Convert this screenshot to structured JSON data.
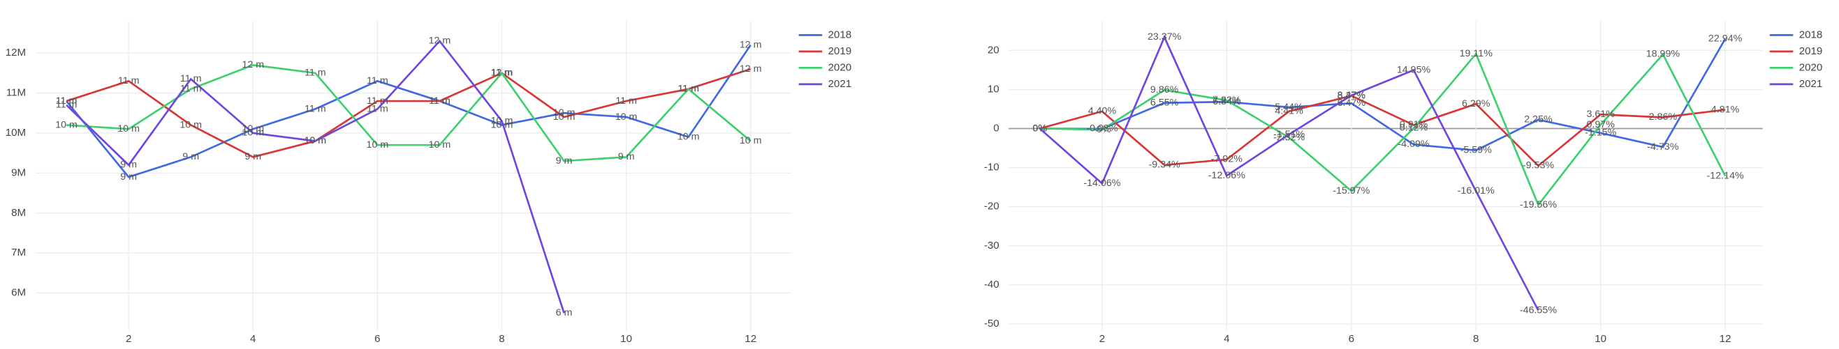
{
  "chart_data": [
    {
      "type": "line",
      "x": [
        1,
        2,
        3,
        4,
        5,
        6,
        7,
        8,
        9,
        10,
        11,
        12
      ],
      "xlim": [
        0.5,
        12.66
      ],
      "xticks": [
        2,
        4,
        6,
        8,
        10,
        12
      ],
      "ylim": [
        5.05,
        12.8
      ],
      "yticks": [
        {
          "value": 6,
          "label": "6M"
        },
        {
          "value": 7,
          "label": "7M"
        },
        {
          "value": 8,
          "label": "8M"
        },
        {
          "value": 9,
          "label": "9M"
        },
        {
          "value": 10,
          "label": "10M"
        },
        {
          "value": 11,
          "label": "11M"
        },
        {
          "value": 12,
          "label": "12M"
        }
      ],
      "grid": true,
      "legend": "right",
      "series": [
        {
          "name": "2018",
          "color": "#4169e1",
          "values": [
            10.8,
            8.9,
            9.4,
            10.1,
            10.6,
            11.3,
            10.8,
            10.2,
            10.5,
            10.4,
            9.9,
            12.2
          ],
          "value_labels": [
            "11 m",
            "9 m",
            "9 m",
            "10 m",
            "11 m",
            "11 m",
            "11 m",
            "10 m",
            "10 m",
            "10 m",
            "10 m",
            "12 m"
          ]
        },
        {
          "name": "2019",
          "color": "#d93636",
          "values": [
            10.8,
            11.3,
            10.2,
            9.4,
            9.8,
            10.8,
            10.8,
            11.5,
            10.4,
            10.8,
            11.1,
            11.6
          ],
          "value_labels": [
            "11 m",
            "11 m",
            "10 m",
            "9 m",
            "10 m",
            "11 m",
            "11 m",
            "12 m",
            "10 m",
            "11 m",
            "11 m",
            "12 m"
          ]
        },
        {
          "name": "2020",
          "color": "#3ecf6e",
          "values": [
            10.2,
            10.1,
            11.1,
            11.7,
            11.5,
            9.7,
            9.7,
            11.5,
            9.3,
            9.4,
            11.1,
            9.8
          ],
          "value_labels": [
            "10 m",
            "10 m",
            "11 m",
            "12 m",
            "11 m",
            "10 m",
            "10 m",
            "11 m",
            "9 m",
            "9 m",
            "11 m",
            "10 m"
          ]
        },
        {
          "name": "2021",
          "color": "#7046e0",
          "values": [
            10.7,
            9.2,
            11.35,
            10.0,
            9.8,
            10.6,
            12.3,
            10.3,
            5.5,
            null,
            null,
            null
          ],
          "value_labels": [
            "11 m",
            "9 m",
            "11 m",
            "10 m",
            "10 m",
            "11 m",
            "12 m",
            "10 m",
            "6 m",
            null,
            null,
            null
          ]
        }
      ]
    },
    {
      "type": "line",
      "x": [
        1,
        2,
        3,
        4,
        5,
        6,
        7,
        8,
        9,
        10,
        11,
        12
      ],
      "xlim": [
        0.5,
        12.6
      ],
      "xticks": [
        2,
        4,
        6,
        8,
        10,
        12
      ],
      "ylim": [
        -51.8,
        27.5
      ],
      "yticks": [
        -50,
        -40,
        -30,
        -20,
        -10,
        0,
        10,
        20
      ],
      "grid": true,
      "zeroline": true,
      "legend": "right",
      "series": [
        {
          "name": "2018",
          "color": "#4169e1",
          "values": [
            0,
            -0.08,
            6.55,
            6.84,
            5.44,
            6.47,
            -4.09,
            -5.59,
            2.25,
            -1.15,
            -4.73,
            22.94
          ],
          "value_labels": [
            "0%",
            "-0.08%",
            "6.55%",
            "6.84%",
            "5.44%",
            "6.47%",
            "-4.09%",
            "-5.59%",
            "2.25%",
            "-1.15%",
            "-4.73%",
            "22.94%"
          ]
        },
        {
          "name": "2019",
          "color": "#d93636",
          "values": [
            0,
            4.4,
            -9.34,
            -7.92,
            4.41,
            8.37,
            0.91,
            6.29,
            -9.53,
            3.61,
            2.86,
            4.81
          ],
          "value_labels": [
            "0%",
            "4.40%",
            "-9.34%",
            "-7.92%",
            "4.41%",
            "8.37%",
            "0.91%",
            "6.29%",
            "-9.53%",
            "3.61%",
            "2.86%",
            "4.81%"
          ]
        },
        {
          "name": "2020",
          "color": "#3ecf6e",
          "values": [
            0,
            -0.3,
            9.86,
            7.22,
            -2.32,
            -15.97,
            0.12,
            19.11,
            -19.56,
            0.97,
            18.99,
            -12.14
          ],
          "value_labels": [
            "0%",
            "-0%",
            "9.86%",
            "7.22%",
            "-2.32%",
            "-15.97%",
            "0.12%",
            "19.11%",
            "-19.56%",
            "0.97%",
            "18.99%",
            "-12.14%"
          ]
        },
        {
          "name": "2021",
          "color": "#7046e0",
          "values": [
            0,
            -14.06,
            23.37,
            -12.06,
            -1.51,
            8.47,
            14.95,
            -16.01,
            -46.55,
            null,
            null,
            null
          ],
          "value_labels": [
            "0%",
            "-14.06%",
            "23.37%",
            "-12.06%",
            "-1.51%",
            "8.47%",
            "14.95%",
            "-16.01%",
            "-46.55%",
            null,
            null,
            null
          ]
        }
      ]
    }
  ]
}
